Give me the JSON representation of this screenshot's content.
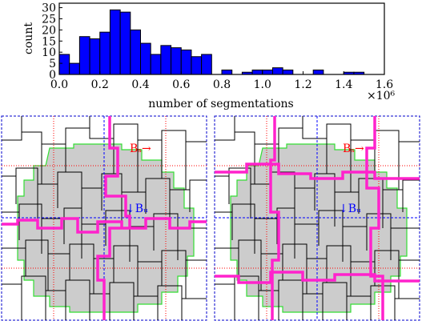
{
  "chart_data": {
    "type": "histogram",
    "xlabel": "number of segmentations",
    "ylabel": "count",
    "x_offset_label": "×10⁶",
    "bins": [
      0,
      0.05,
      0.1,
      0.15,
      0.2,
      0.25,
      0.3,
      0.35,
      0.4,
      0.45,
      0.5,
      0.55,
      0.6,
      0.65,
      0.7,
      0.75,
      0.8,
      0.85,
      0.9,
      0.95,
      1.0,
      1.05,
      1.1,
      1.15,
      1.2,
      1.25,
      1.3,
      1.35,
      1.4,
      1.45,
      1.5,
      1.55,
      1.6
    ],
    "values": [
      9,
      5,
      17,
      16,
      19,
      29,
      28,
      20,
      14,
      9,
      13,
      12,
      11,
      8,
      9,
      0,
      2,
      0,
      1,
      2,
      2,
      3,
      2,
      0,
      0,
      2,
      0,
      0,
      1,
      1,
      0,
      0
    ],
    "color": "#0000ff",
    "xlim": [
      0,
      1.6
    ],
    "xticks": [
      {
        "value": 0,
        "label": "0.0"
      },
      0.2,
      0.4,
      0.6,
      0.8,
      {
        "value": 1,
        "label": "1.0"
      },
      1.2,
      1.4,
      1.6
    ],
    "ylim": [
      0,
      32
    ],
    "yticks": [
      0,
      5,
      10,
      15,
      20,
      25,
      30
    ]
  },
  "panels": [
    {
      "labels": [
        "Bₛ→",
        "↓Bᵤ"
      ]
    },
    {
      "labels": [
        "Bₛ→",
        "↓Bᵤ"
      ]
    }
  ]
}
